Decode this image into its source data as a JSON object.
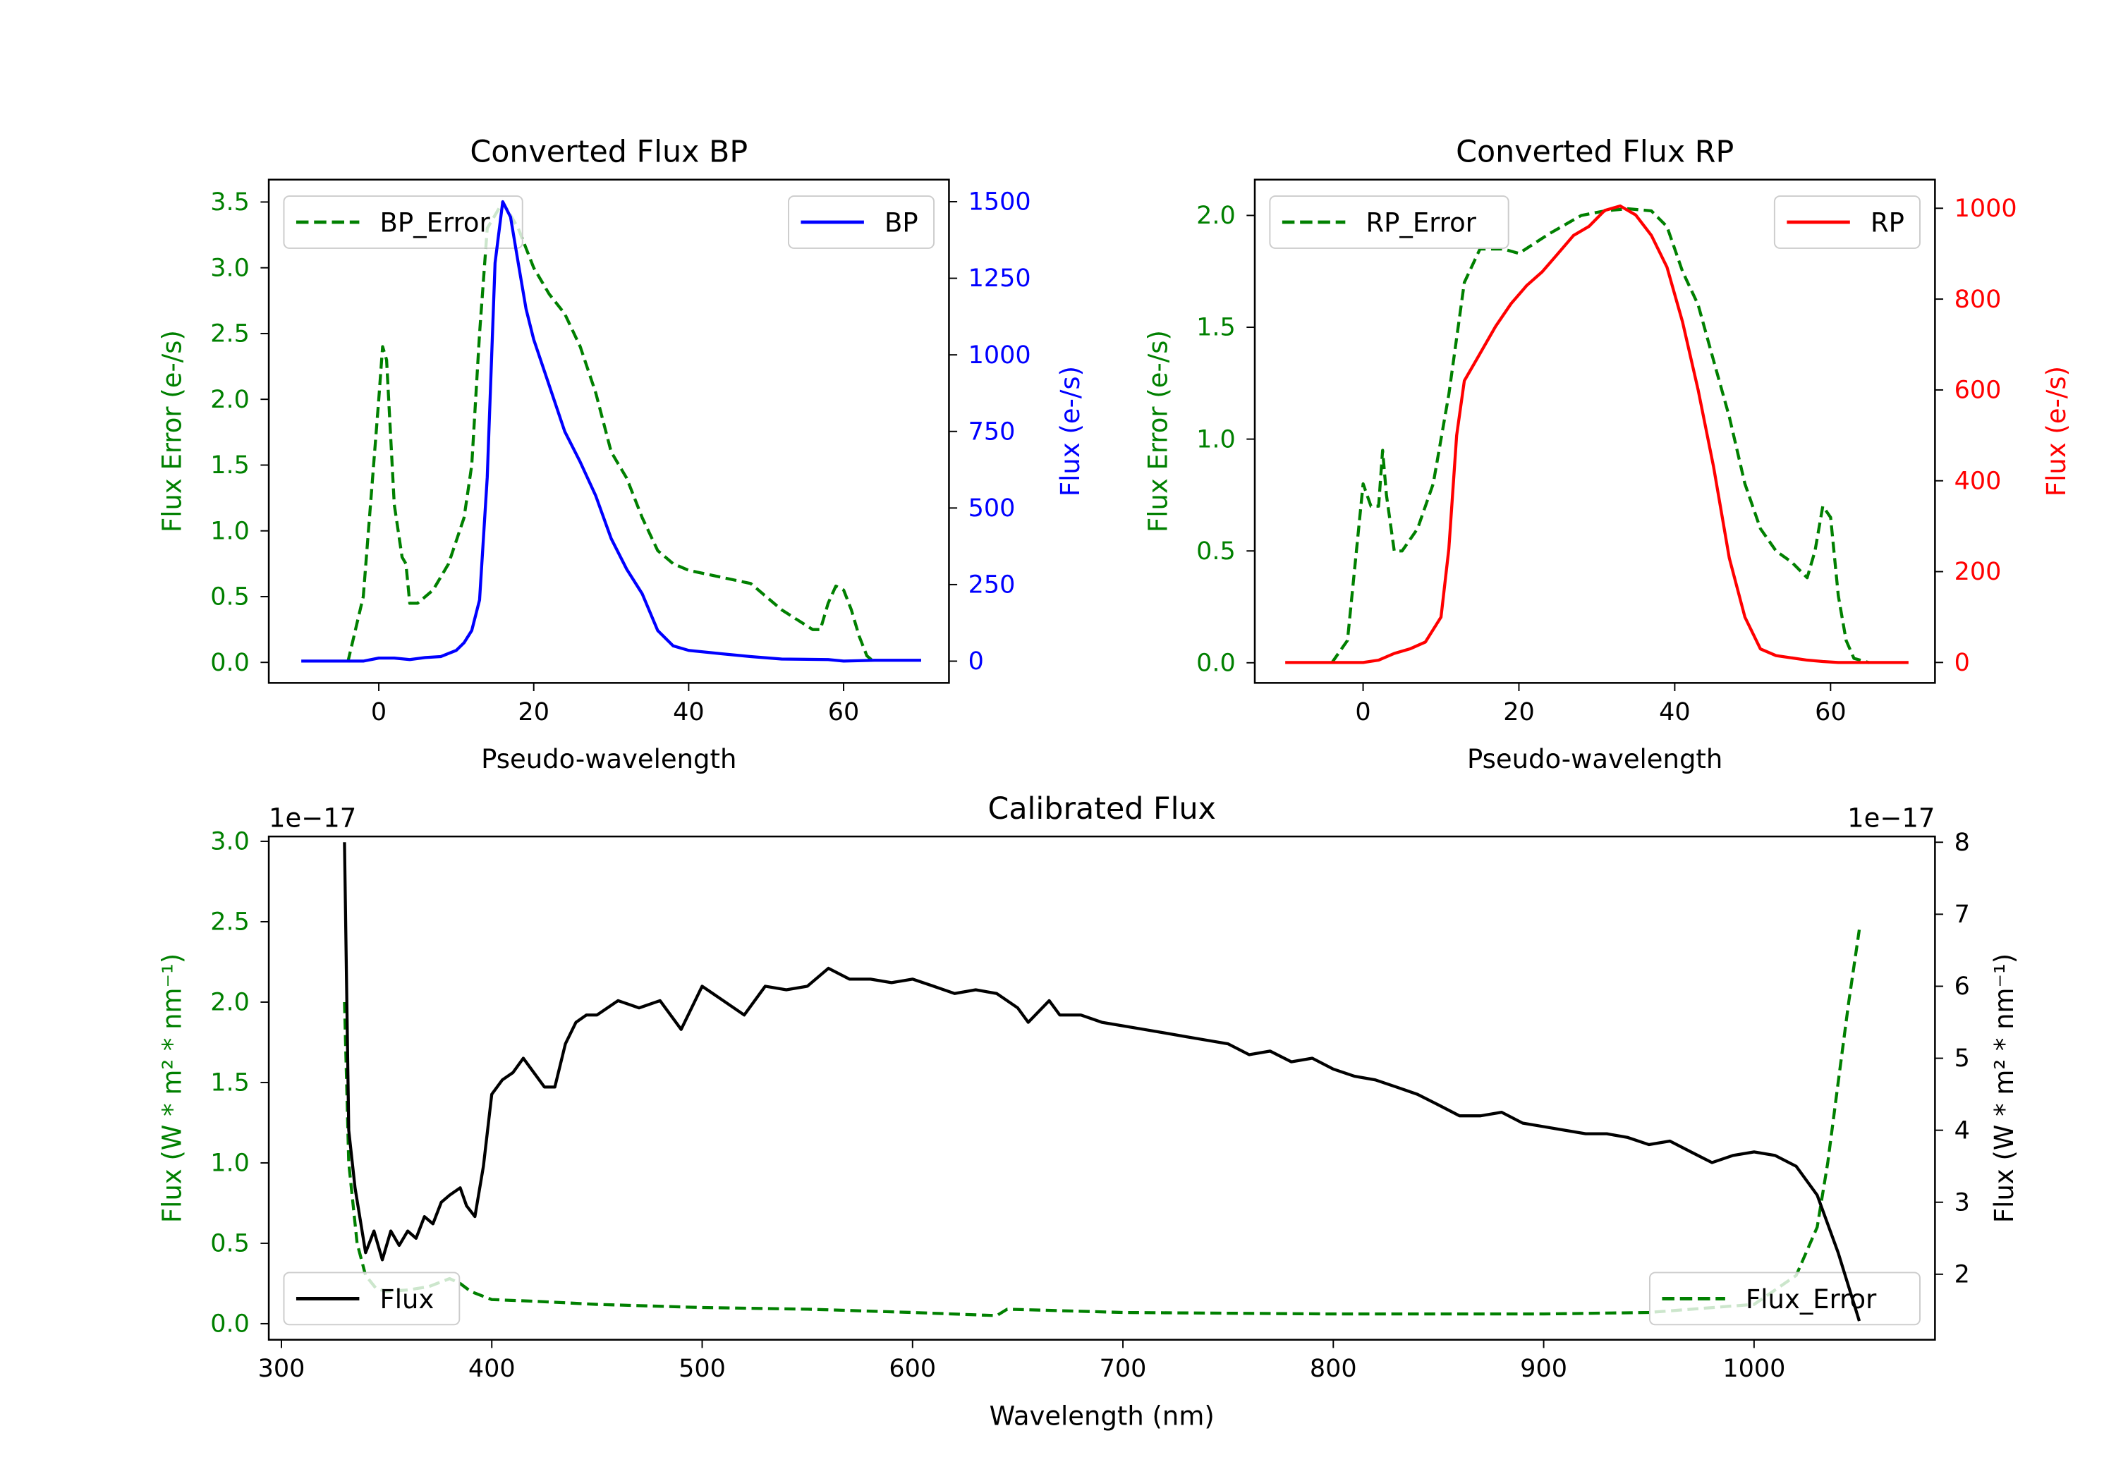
{
  "chart_data": [
    {
      "type": "line",
      "title": "Converted Flux BP",
      "xlabel": "Pseudo-wavelength",
      "ylabel_left": "Flux Error (e-/s)",
      "ylabel_right": "Flux (e-/s)",
      "left_color": "#008000",
      "right_color": "#0000ff",
      "xlim": [
        -14.2,
        73.6
      ],
      "ylim_left": [
        -0.156,
        3.67
      ],
      "ylim_right": [
        -71,
        1572
      ],
      "xticks": [
        0,
        20,
        40,
        60
      ],
      "yticks_left": [
        "0.0",
        "0.5",
        "1.0",
        "1.5",
        "2.0",
        "2.5",
        "3.0",
        "3.5"
      ],
      "yticks_right": [
        "0",
        "250",
        "500",
        "750",
        "1000",
        "1250",
        "1500"
      ],
      "offset_left": "",
      "offset_right": "",
      "series": [
        {
          "name": "BP_Error",
          "axis": "left",
          "color": "#008000",
          "style": "dashed",
          "legend": "upper left",
          "x": [
            -4,
            -2,
            0,
            0.5,
            1,
            2,
            3,
            3.5,
            4,
            5,
            7,
            9,
            11,
            12,
            13,
            14,
            15,
            16,
            18,
            20,
            22,
            24,
            26,
            28,
            30,
            32,
            34,
            36,
            38,
            40,
            44,
            48,
            52,
            56,
            57,
            58,
            59,
            60,
            61,
            62,
            63,
            64
          ],
          "y": [
            0,
            0.5,
            2.0,
            2.4,
            2.3,
            1.2,
            0.8,
            0.75,
            0.45,
            0.45,
            0.55,
            0.75,
            1.1,
            1.5,
            2.5,
            3.3,
            3.4,
            3.5,
            3.3,
            3.0,
            2.8,
            2.65,
            2.4,
            2.05,
            1.6,
            1.4,
            1.1,
            0.85,
            0.75,
            0.7,
            0.65,
            0.6,
            0.4,
            0.25,
            0.25,
            0.45,
            0.58,
            0.55,
            0.4,
            0.2,
            0.05,
            0
          ]
        },
        {
          "name": "BP",
          "axis": "right",
          "color": "#0000ff",
          "style": "solid",
          "legend": "upper right",
          "x": [
            -10,
            -2,
            0,
            2,
            4,
            6,
            8,
            10,
            11,
            12,
            13,
            14,
            15,
            16,
            17,
            18,
            19,
            20,
            22,
            24,
            26,
            28,
            30,
            32,
            34,
            36,
            38,
            40,
            44,
            48,
            52,
            58,
            60,
            64,
            70
          ],
          "y": [
            0,
            0,
            10,
            10,
            5,
            12,
            15,
            35,
            60,
            100,
            200,
            600,
            1300,
            1500,
            1450,
            1300,
            1150,
            1050,
            900,
            750,
            650,
            540,
            400,
            300,
            220,
            100,
            50,
            35,
            25,
            15,
            7,
            5,
            0,
            3,
            3
          ]
        }
      ]
    },
    {
      "type": "line",
      "title": "Converted Flux RP",
      "xlabel": "Pseudo-wavelength",
      "ylabel_left": "Flux Error (e-/s)",
      "ylabel_right": "Flux (e-/s)",
      "left_color": "#008000",
      "right_color": "#ff0000",
      "xlim": [
        -13.9,
        73.4
      ],
      "ylim_left": [
        -0.09,
        2.16
      ],
      "ylim_right": [
        -45,
        1063
      ],
      "xticks": [
        0,
        20,
        40,
        60
      ],
      "yticks_left": [
        "0.0",
        "0.5",
        "1.0",
        "1.5",
        "2.0"
      ],
      "yticks_right": [
        "0",
        "200",
        "400",
        "600",
        "800",
        "1000"
      ],
      "offset_left": "",
      "offset_right": "",
      "series": [
        {
          "name": "RP_Error",
          "axis": "left",
          "color": "#008000",
          "style": "dashed",
          "legend": "upper left",
          "x": [
            -4,
            -2,
            0,
            1,
            2,
            2.5,
            3,
            4,
            5,
            7,
            9,
            11,
            13,
            15,
            18,
            20,
            24,
            28,
            31,
            34,
            37,
            39,
            41,
            43,
            45,
            47,
            49,
            51,
            53,
            55,
            57,
            58,
            59,
            60,
            61,
            62,
            63,
            65
          ],
          "y": [
            0,
            0.1,
            0.8,
            0.7,
            0.7,
            0.95,
            0.75,
            0.5,
            0.5,
            0.6,
            0.8,
            1.2,
            1.7,
            1.85,
            1.85,
            1.83,
            1.92,
            2.0,
            2.02,
            2.03,
            2.02,
            1.95,
            1.75,
            1.6,
            1.35,
            1.1,
            0.8,
            0.6,
            0.5,
            0.45,
            0.38,
            0.5,
            0.7,
            0.65,
            0.3,
            0.1,
            0.02,
            0
          ]
        },
        {
          "name": "RP",
          "axis": "right",
          "color": "#ff0000",
          "style": "solid",
          "legend": "upper right",
          "x": [
            -10,
            0,
            2,
            4,
            6,
            8,
            10,
            11,
            12,
            13,
            15,
            17,
            19,
            21,
            23,
            25,
            27,
            29,
            31,
            33,
            35,
            37,
            39,
            41,
            43,
            45,
            47,
            49,
            51,
            53,
            57,
            59,
            61,
            70
          ],
          "y": [
            0,
            0,
            5,
            20,
            30,
            45,
            100,
            250,
            500,
            620,
            680,
            740,
            790,
            830,
            860,
            900,
            940,
            960,
            995,
            1005,
            985,
            940,
            870,
            750,
            600,
            430,
            230,
            100,
            30,
            15,
            5,
            2,
            0,
            0
          ]
        }
      ]
    },
    {
      "type": "line",
      "title": "Calibrated Flux",
      "xlabel": "Wavelength (nm)",
      "ylabel_left": "Flux (W * m² * nm⁻¹)",
      "ylabel_right": "Flux (W * m² * nm⁻¹)",
      "left_color": "#008000",
      "right_color": "#000000",
      "xlim": [
        294,
        1086
      ],
      "ylim_left": [
        -0.1,
        3.03
      ],
      "ylim_right": [
        1.09,
        8.08
      ],
      "xticks": [
        300,
        400,
        500,
        600,
        700,
        800,
        900,
        1000
      ],
      "yticks_left": [
        "0.0",
        "0.5",
        "1.0",
        "1.5",
        "2.0",
        "2.5",
        "3.0"
      ],
      "yticks_right": [
        "2",
        "3",
        "4",
        "5",
        "6",
        "7",
        "8"
      ],
      "offset_left": "1e−17",
      "offset_right": "1e−17",
      "series": [
        {
          "name": "Flux_Error",
          "axis": "left",
          "color": "#008000",
          "style": "dashed",
          "legend": "lower right",
          "x": [
            330,
            332,
            336,
            340,
            345,
            350,
            360,
            370,
            380,
            385,
            390,
            400,
            420,
            450,
            500,
            550,
            600,
            640,
            645,
            700,
            800,
            900,
            950,
            1000,
            1020,
            1030,
            1035,
            1040,
            1045,
            1050
          ],
          "y": [
            2.0,
            1.0,
            0.5,
            0.3,
            0.22,
            0.2,
            0.21,
            0.23,
            0.28,
            0.25,
            0.2,
            0.15,
            0.14,
            0.12,
            0.1,
            0.09,
            0.07,
            0.05,
            0.09,
            0.07,
            0.06,
            0.06,
            0.07,
            0.12,
            0.3,
            0.6,
            1.0,
            1.5,
            2.0,
            2.45
          ]
        },
        {
          "name": "Flux",
          "axis": "right",
          "color": "#000000",
          "style": "solid",
          "legend": "lower left",
          "x": [
            330,
            332,
            335,
            340,
            344,
            348,
            352,
            356,
            360,
            364,
            368,
            372,
            376,
            380,
            385,
            388,
            392,
            396,
            400,
            405,
            410,
            415,
            420,
            425,
            430,
            435,
            440,
            445,
            450,
            460,
            470,
            480,
            490,
            500,
            510,
            520,
            530,
            540,
            550,
            560,
            570,
            580,
            590,
            600,
            610,
            620,
            630,
            640,
            650,
            655,
            665,
            670,
            680,
            690,
            700,
            710,
            720,
            730,
            740,
            750,
            760,
            770,
            780,
            790,
            800,
            810,
            820,
            830,
            840,
            850,
            860,
            870,
            880,
            890,
            900,
            910,
            920,
            930,
            940,
            950,
            960,
            970,
            980,
            990,
            1000,
            1010,
            1020,
            1030,
            1040,
            1050
          ],
          "y": [
            8,
            4,
            3.2,
            2.3,
            2.6,
            2.2,
            2.6,
            2.4,
            2.6,
            2.5,
            2.8,
            2.7,
            3.0,
            3.1,
            3.2,
            2.95,
            2.8,
            3.5,
            4.5,
            4.7,
            4.8,
            5.0,
            4.8,
            4.6,
            4.6,
            5.2,
            5.5,
            5.6,
            5.6,
            5.8,
            5.7,
            5.8,
            5.4,
            6.0,
            5.8,
            5.6,
            6.0,
            5.95,
            6.0,
            6.25,
            6.1,
            6.1,
            6.05,
            6.1,
            6.0,
            5.9,
            5.95,
            5.9,
            5.7,
            5.5,
            5.8,
            5.6,
            5.6,
            5.5,
            5.45,
            5.4,
            5.35,
            5.3,
            5.25,
            5.2,
            5.05,
            5.1,
            4.95,
            5.0,
            4.85,
            4.75,
            4.7,
            4.6,
            4.5,
            4.35,
            4.2,
            4.2,
            4.25,
            4.1,
            4.05,
            4.0,
            3.95,
            3.95,
            3.9,
            3.8,
            3.85,
            3.7,
            3.55,
            3.65,
            3.7,
            3.65,
            3.5,
            3.1,
            2.3,
            1.35
          ]
        }
      ]
    }
  ]
}
